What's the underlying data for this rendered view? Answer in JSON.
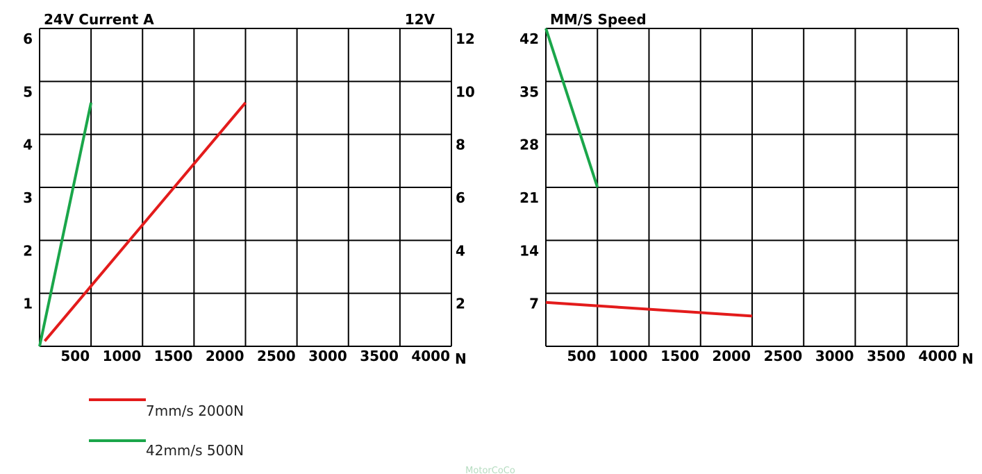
{
  "chart_data": [
    {
      "type": "line",
      "title": "24V Current A",
      "right_axis_title": "12V",
      "xlabel": "N",
      "x_ticks": [
        "500",
        "1000",
        "1500",
        "2000",
        "2500",
        "3000",
        "3500",
        "4000"
      ],
      "y_ticks": [
        "1",
        "2",
        "3",
        "4",
        "5",
        "6"
      ],
      "y2_ticks": [
        "2",
        "4",
        "6",
        "8",
        "10",
        "12"
      ],
      "xlim": [
        0,
        4000
      ],
      "ylim": [
        0,
        6
      ],
      "grid": true,
      "series": [
        {
          "name": "7mm/s 2000N",
          "color": "#e31b1b",
          "points": [
            [
              50,
              0.1
            ],
            [
              2000,
              4.6
            ]
          ]
        },
        {
          "name": "42mm/s 500N",
          "color": "#1aa64a",
          "points": [
            [
              0,
              0.0
            ],
            [
              500,
              4.6
            ]
          ]
        }
      ]
    },
    {
      "type": "line",
      "title": "MM/S Speed",
      "xlabel": "N",
      "x_ticks": [
        "500",
        "1000",
        "1500",
        "2000",
        "2500",
        "3000",
        "3500",
        "4000"
      ],
      "y_ticks": [
        "7",
        "14",
        "21",
        "28",
        "35",
        "42"
      ],
      "xlim": [
        0,
        4000
      ],
      "ylim": [
        0,
        42
      ],
      "grid": true,
      "series": [
        {
          "name": "7mm/s 2000N",
          "color": "#e31b1b",
          "points": [
            [
              0,
              5.8
            ],
            [
              2000,
              4.0
            ]
          ]
        },
        {
          "name": "42mm/s 500N",
          "color": "#1aa64a",
          "points": [
            [
              0,
              42.0
            ],
            [
              500,
              21.0
            ]
          ]
        }
      ]
    }
  ],
  "legend": {
    "items": [
      {
        "label": "7mm/s 2000N",
        "color": "#e31b1b"
      },
      {
        "label": "42mm/s 500N",
        "color": "#1aa64a"
      }
    ]
  },
  "watermark": "MotorCoCo"
}
